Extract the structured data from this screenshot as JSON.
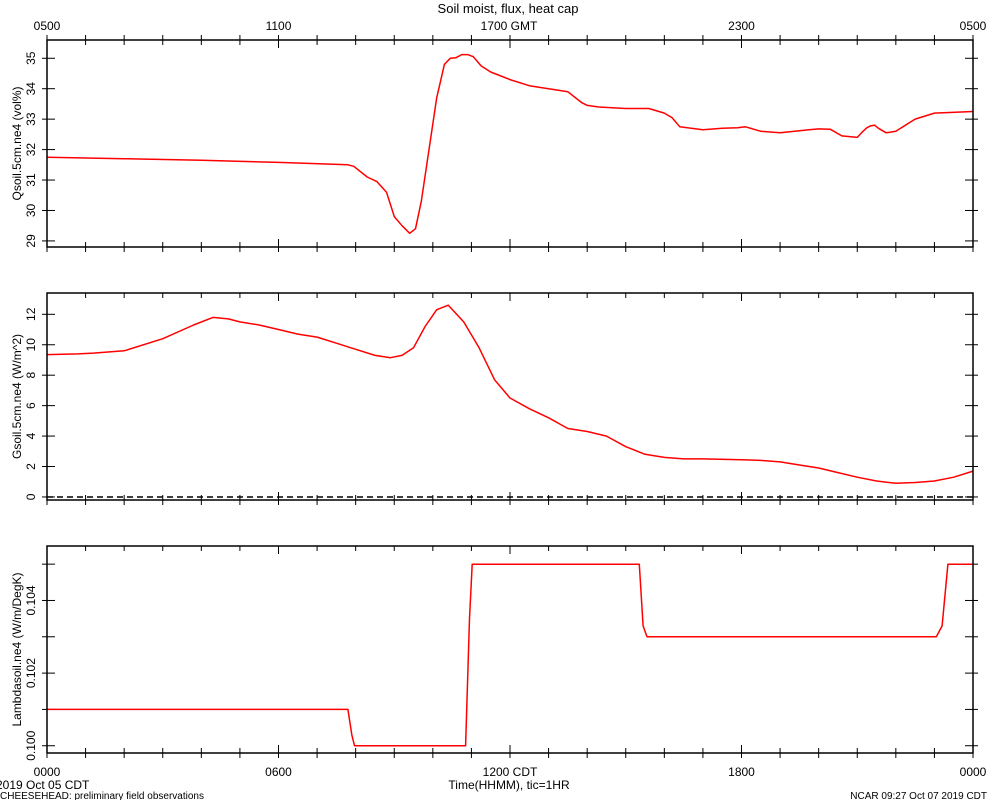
{
  "chart_data": {
    "type": "line",
    "title": "Soil moist, flux, heat cap",
    "top_axis": {
      "label": "1700 GMT",
      "ticks": [
        {
          "x": 0,
          "label": "0500"
        },
        {
          "x": 6,
          "label": "1100"
        },
        {
          "x": 18,
          "label": "2300"
        },
        {
          "x": 24,
          "label": "0500"
        }
      ]
    },
    "bottom_axis": {
      "label": "Time(HHMM), tic=1HR",
      "date_label": "2019 Oct 05 CDT",
      "ticks": [
        {
          "x": 0,
          "label": "0000"
        },
        {
          "x": 6,
          "label": "0600"
        },
        {
          "x": 12,
          "label": "1200 CDT"
        },
        {
          "x": 18,
          "label": "1800"
        },
        {
          "x": 24,
          "label": "0000"
        }
      ]
    },
    "footer_left": "CHEESEHEAD: preliminary field observations",
    "footer_right": "NCAR 09:27 Oct 07 2019 CDT",
    "xlim": [
      0,
      24
    ],
    "panels": [
      {
        "ylabel": "Qsoil.5cm.ne4 (vol%)",
        "ylim": [
          28.8,
          35.6
        ],
        "yticks": [
          29,
          30,
          31,
          32,
          33,
          34,
          35
        ],
        "yticklabels": [
          "29",
          "30",
          "31",
          "32",
          "33",
          "34",
          "35"
        ],
        "zero_line": false,
        "series": [
          {
            "color": "#ff0000",
            "x": [
              0,
              2,
              4,
              6,
              7.8,
              7.95,
              8.3,
              8.55,
              8.8,
              9.0,
              9.2,
              9.4,
              9.55,
              9.7,
              9.9,
              10.1,
              10.3,
              10.45,
              10.6,
              10.75,
              10.9,
              11.05,
              11.25,
              11.5,
              12.0,
              12.5,
              13.0,
              13.5,
              13.85,
              14.0,
              14.3,
              15.0,
              15.6,
              16.0,
              16.2,
              16.4,
              17.0,
              17.5,
              17.9,
              18.1,
              18.5,
              19.0,
              19.5,
              19.75,
              20.0,
              20.3,
              20.6,
              21.0,
              21.15,
              21.25,
              21.35,
              21.45,
              21.55,
              21.75,
              22.0,
              22.5,
              23.0,
              24.0
            ],
            "y": [
              31.75,
              31.7,
              31.65,
              31.58,
              31.5,
              31.45,
              31.1,
              30.95,
              30.6,
              29.8,
              29.5,
              29.25,
              29.4,
              30.3,
              32.0,
              33.7,
              34.8,
              35.0,
              35.02,
              35.12,
              35.12,
              35.05,
              34.75,
              34.55,
              34.3,
              34.1,
              34.0,
              33.9,
              33.55,
              33.45,
              33.4,
              33.35,
              33.35,
              33.2,
              33.05,
              32.75,
              32.65,
              32.7,
              32.72,
              32.75,
              32.6,
              32.55,
              32.62,
              32.65,
              32.68,
              32.67,
              32.45,
              32.4,
              32.6,
              32.72,
              32.78,
              32.8,
              32.7,
              32.55,
              32.6,
              33.0,
              33.2,
              33.25
            ]
          }
        ]
      },
      {
        "ylabel": "Gsoil.5cm.ne4 (W/m^2)",
        "ylim": [
          -0.2,
          13.4
        ],
        "yticks": [
          0,
          2,
          4,
          6,
          8,
          10,
          12
        ],
        "yticklabels": [
          "0",
          "2",
          "4",
          "6",
          "8",
          "10",
          "12"
        ],
        "zero_line": true,
        "series": [
          {
            "color": "#ff0000",
            "x": [
              0,
              0.8,
              1.2,
              2.0,
              3.0,
              3.8,
              4.3,
              4.7,
              5.0,
              5.5,
              6.0,
              6.5,
              7.0,
              7.5,
              8.0,
              8.5,
              8.9,
              9.2,
              9.5,
              9.8,
              10.1,
              10.4,
              10.8,
              11.2,
              11.6,
              12.0,
              12.5,
              13.0,
              13.5,
              14.0,
              14.5,
              15.0,
              15.5,
              16.0,
              16.5,
              17.0,
              18.0,
              18.5,
              19.0,
              19.5,
              20.0,
              20.5,
              21.0,
              21.5,
              22.0,
              22.5,
              23.0,
              23.5,
              24.0
            ],
            "y": [
              9.35,
              9.4,
              9.45,
              9.6,
              10.4,
              11.3,
              11.8,
              11.7,
              11.5,
              11.3,
              11.0,
              10.7,
              10.5,
              10.1,
              9.7,
              9.3,
              9.15,
              9.3,
              9.8,
              11.2,
              12.3,
              12.6,
              11.5,
              9.8,
              7.7,
              6.5,
              5.8,
              5.2,
              4.5,
              4.3,
              4.0,
              3.3,
              2.8,
              2.6,
              2.5,
              2.5,
              2.45,
              2.4,
              2.3,
              2.1,
              1.9,
              1.6,
              1.3,
              1.05,
              0.9,
              0.95,
              1.05,
              1.3,
              1.7
            ]
          }
        ]
      },
      {
        "ylabel": "Lambdasoil.ne4 (W/m/DegK)",
        "ylim": [
          0.0998,
          0.1055
        ],
        "yticks": [
          0.1,
          0.101,
          0.102,
          0.103,
          0.104,
          0.105
        ],
        "yticklabels": [
          "0.100",
          "",
          "0.102",
          "",
          "0.104",
          ""
        ],
        "zero_line": false,
        "series": [
          {
            "color": "#ff0000",
            "x": [
              0,
              7.8,
              7.9,
              7.97,
              8.15,
              10.85,
              10.95,
              11.02,
              15.35,
              15.45,
              15.55,
              23.05,
              23.2,
              23.35,
              24.0
            ],
            "y": [
              0.101,
              0.101,
              0.1003,
              0.1,
              0.1,
              0.1,
              0.1035,
              0.105,
              0.105,
              0.1033,
              0.103,
              0.103,
              0.1033,
              0.105,
              0.105
            ]
          }
        ]
      }
    ]
  }
}
